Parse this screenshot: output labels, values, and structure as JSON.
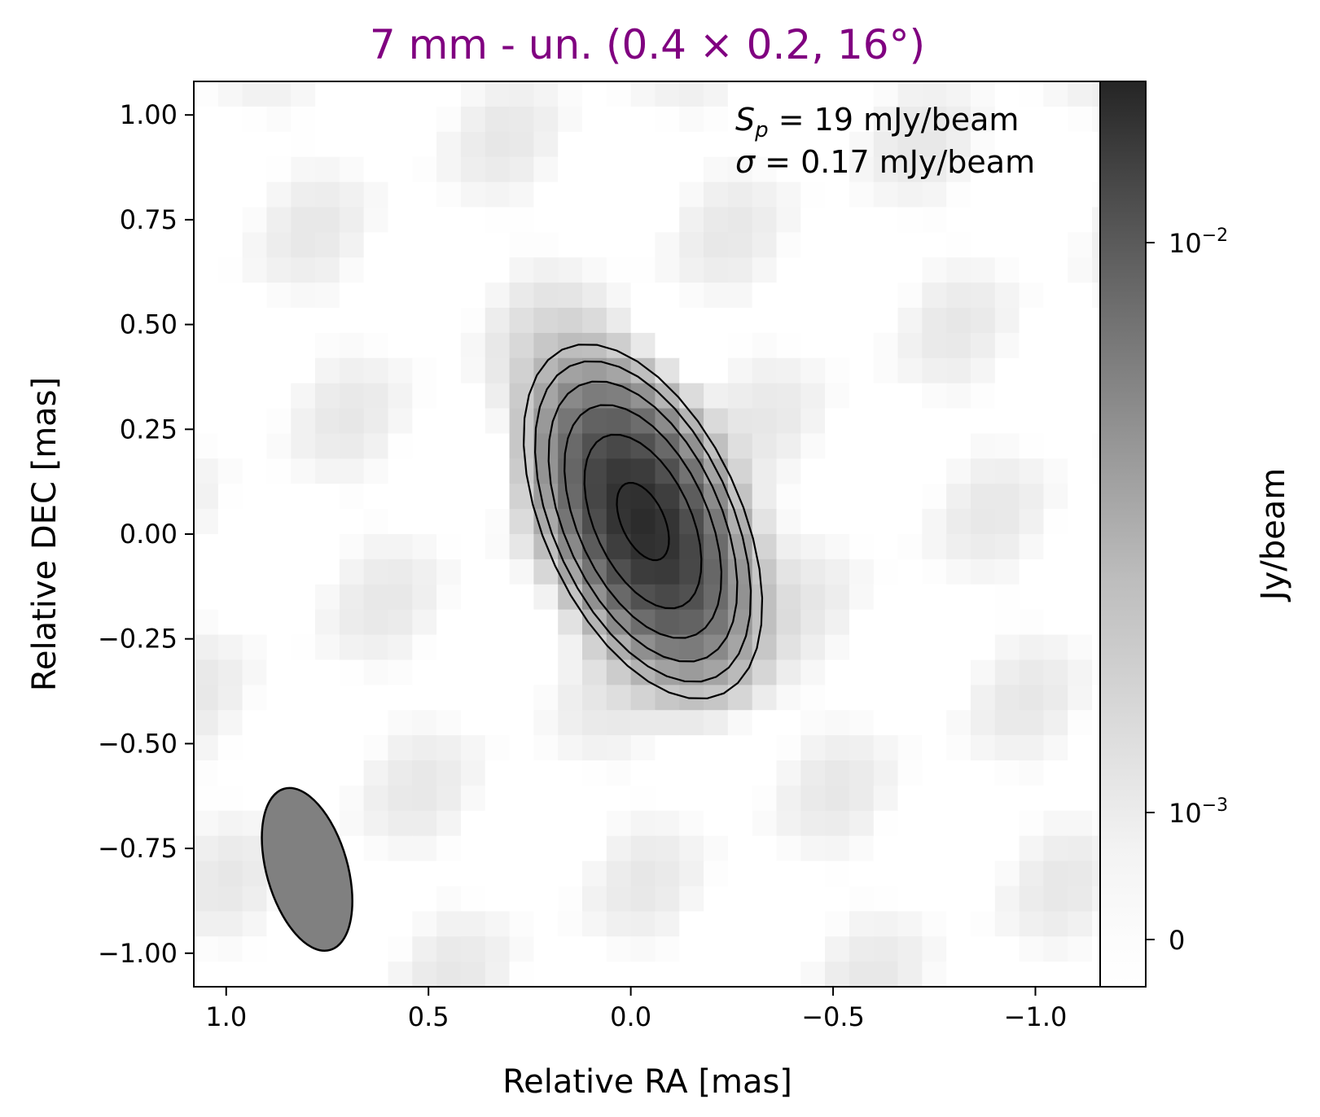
{
  "chart_data": {
    "type": "heatmap",
    "title": "7 mm - un. (0.4 × 0.2, 16°)",
    "title_color": "#800080",
    "xlabel": "Relative RA [mas]",
    "ylabel": "Relative DEC [mas]",
    "xlim": [
      1.0,
      -1.0
    ],
    "ylim": [
      -1.0,
      1.0
    ],
    "x_ticks": [
      1.0,
      0.5,
      0.0,
      -0.5,
      -1.0
    ],
    "x_tick_labels": [
      "1.0",
      "0.5",
      "0.0",
      "−0.5",
      "−1.0"
    ],
    "y_ticks": [
      1.0,
      0.75,
      0.5,
      0.25,
      0.0,
      -0.25,
      -0.5,
      -0.75,
      -1.0
    ],
    "y_tick_labels": [
      "1.00",
      "0.75",
      "0.50",
      "0.25",
      "0.00",
      "−0.25",
      "−0.50",
      "−0.75",
      "−1.00"
    ],
    "colorbar": {
      "label": "Jy/beam",
      "colormap": "Greys",
      "scale": "symlog",
      "tick_labels": [
        "0",
        "10",
        "−3",
        "10",
        "−2"
      ],
      "tick_values": [
        0,
        0.001,
        0.01
      ]
    },
    "annotations": {
      "sp_symbol": "S",
      "sp_sub": "p",
      "sp_text": " = 19 mJy/beam",
      "sigma_symbol": "σ",
      "sigma_text": " = 0.17 mJy/beam"
    },
    "peak_flux_mjy_per_beam": 19,
    "rms_mjy_per_beam": 0.17,
    "source": {
      "ra_offset_mas": -0.03,
      "dec_offset_mas": 0.03,
      "pa_deg": 26
    },
    "beam": {
      "major_mas": 0.4,
      "minor_mas": 0.2,
      "pa_deg": 16,
      "center_ra_mas": 0.8,
      "center_dec_mas": -0.8,
      "fill_color": "#808080"
    },
    "contour_levels_mjy_per_beam": [
      0.52,
      1.0,
      2.0,
      4.0,
      8.0,
      16.0
    ],
    "contour_color": "#000000"
  }
}
